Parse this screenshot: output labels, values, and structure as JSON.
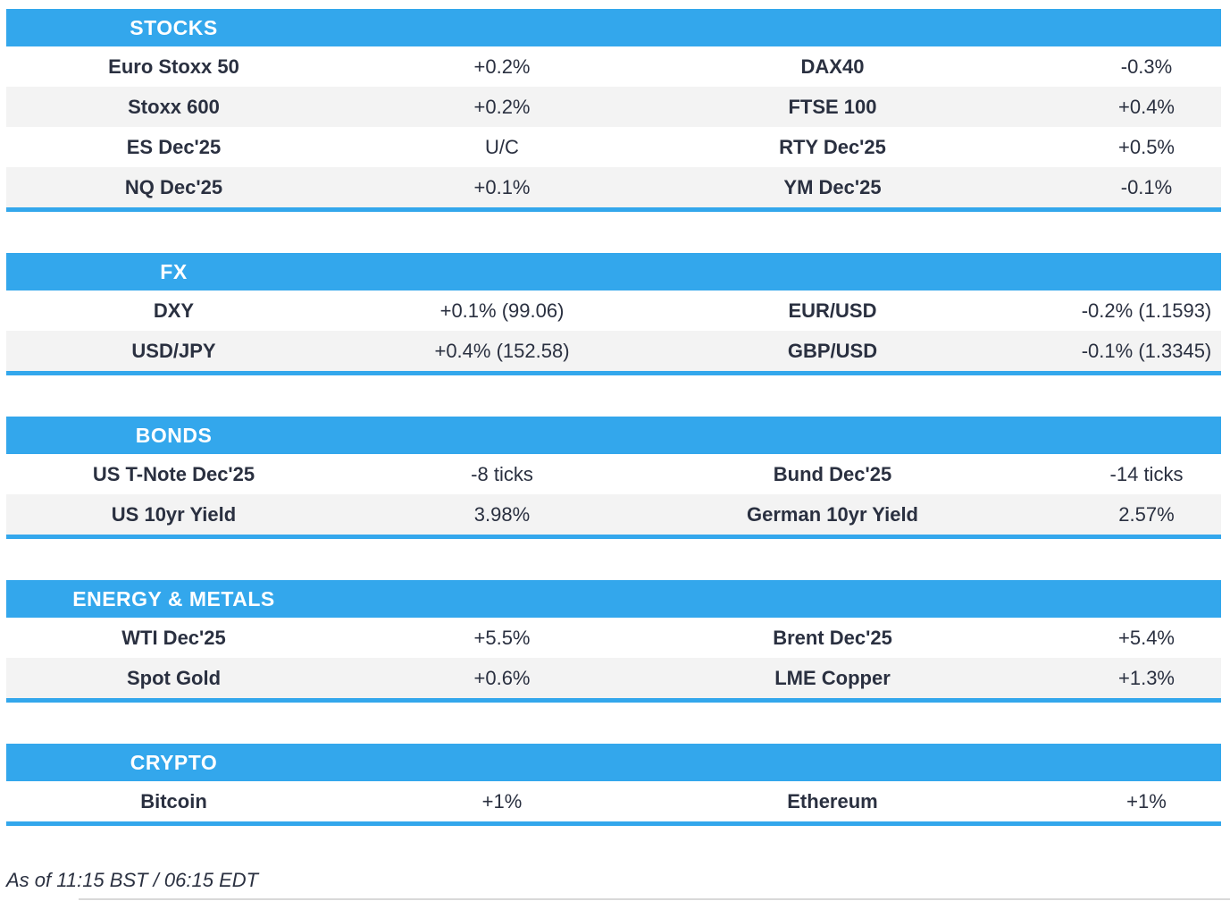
{
  "colors": {
    "accent": "#33a7ec",
    "row_alt": "#f3f3f3",
    "text": "#2a3040"
  },
  "sections": [
    {
      "name": "stocks",
      "title": "STOCKS",
      "rows": [
        {
          "cells": [
            "Euro Stoxx 50",
            "+0.2%",
            "DAX40",
            "-0.3%"
          ]
        },
        {
          "cells": [
            "Stoxx 600",
            "+0.2%",
            "FTSE 100",
            "+0.4%"
          ]
        },
        {
          "cells": [
            "ES Dec'25",
            "U/C",
            "RTY Dec'25",
            "+0.5%"
          ]
        },
        {
          "cells": [
            "NQ Dec'25",
            "+0.1%",
            "YM Dec'25",
            "-0.1%"
          ]
        }
      ]
    },
    {
      "name": "fx",
      "title": "FX",
      "rows": [
        {
          "cells": [
            "DXY",
            "+0.1% (99.06)",
            "EUR/USD",
            "-0.2% (1.1593)"
          ]
        },
        {
          "cells": [
            "USD/JPY",
            "+0.4% (152.58)",
            "GBP/USD",
            "-0.1% (1.3345)"
          ]
        }
      ]
    },
    {
      "name": "bonds",
      "title": "BONDS",
      "rows": [
        {
          "cells": [
            "US T-Note Dec'25",
            "-8 ticks",
            "Bund Dec'25",
            "-14 ticks"
          ]
        },
        {
          "cells": [
            "US 10yr Yield",
            "3.98%",
            "German 10yr Yield",
            "2.57%"
          ]
        }
      ]
    },
    {
      "name": "energy-metals",
      "title": "ENERGY & METALS",
      "rows": [
        {
          "cells": [
            "WTI Dec'25",
            "+5.5%",
            "Brent Dec'25",
            "+5.4%"
          ]
        },
        {
          "cells": [
            "Spot Gold",
            "+0.6%",
            "LME Copper",
            "+1.3%"
          ]
        }
      ]
    },
    {
      "name": "crypto",
      "title": "CRYPTO",
      "rows": [
        {
          "cells": [
            "Bitcoin",
            "+1%",
            "Ethereum",
            "+1%"
          ]
        }
      ]
    }
  ],
  "footer": {
    "as_of": "As of 11:15 BST / 06:15 EDT"
  },
  "chart_data": [
    {
      "type": "table",
      "title": "STOCKS",
      "rows": [
        [
          "Euro Stoxx 50",
          "+0.2%",
          "DAX40",
          "-0.3%"
        ],
        [
          "Stoxx 600",
          "+0.2%",
          "FTSE 100",
          "+0.4%"
        ],
        [
          "ES Dec'25",
          "U/C",
          "RTY Dec'25",
          "+0.5%"
        ],
        [
          "NQ Dec'25",
          "+0.1%",
          "YM Dec'25",
          "-0.1%"
        ]
      ]
    },
    {
      "type": "table",
      "title": "FX",
      "rows": [
        [
          "DXY",
          "+0.1% (99.06)",
          "EUR/USD",
          "-0.2% (1.1593)"
        ],
        [
          "USD/JPY",
          "+0.4% (152.58)",
          "GBP/USD",
          "-0.1% (1.3345)"
        ]
      ]
    },
    {
      "type": "table",
      "title": "BONDS",
      "rows": [
        [
          "US T-Note Dec'25",
          "-8 ticks",
          "Bund Dec'25",
          "-14 ticks"
        ],
        [
          "US 10yr Yield",
          "3.98%",
          "German 10yr Yield",
          "2.57%"
        ]
      ]
    },
    {
      "type": "table",
      "title": "ENERGY & METALS",
      "rows": [
        [
          "WTI Dec'25",
          "+5.5%",
          "Brent Dec'25",
          "+5.4%"
        ],
        [
          "Spot Gold",
          "+0.6%",
          "LME Copper",
          "+1.3%"
        ]
      ]
    },
    {
      "type": "table",
      "title": "CRYPTO",
      "rows": [
        [
          "Bitcoin",
          "+1%",
          "Ethereum",
          "+1%"
        ]
      ]
    }
  ]
}
